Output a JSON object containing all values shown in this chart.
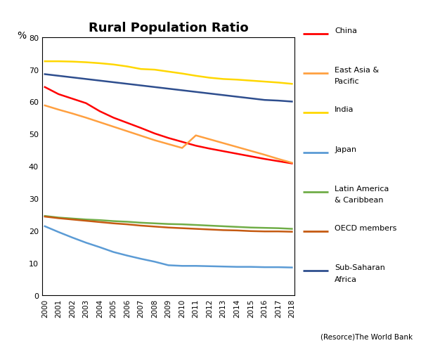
{
  "title": "Rural Population Ratio",
  "ylabel": "%",
  "source": "(Resorce)The World Bank",
  "years": [
    2000,
    2001,
    2002,
    2003,
    2004,
    2005,
    2006,
    2007,
    2008,
    2009,
    2010,
    2011,
    2012,
    2013,
    2014,
    2015,
    2016,
    2017,
    2018
  ],
  "series": [
    {
      "name": "China",
      "label": "China",
      "color": "#FF0000",
      "data": [
        64.5,
        62.3,
        60.9,
        59.5,
        57.0,
        55.0,
        53.4,
        51.8,
        50.1,
        48.7,
        47.5,
        46.3,
        45.4,
        44.6,
        43.8,
        43.0,
        42.2,
        41.5,
        40.8
      ]
    },
    {
      "name": "East Asia & Pacific",
      "label": "East Asia &\nPacific",
      "color": "#FFA040",
      "data": [
        58.8,
        57.5,
        56.3,
        55.0,
        53.6,
        52.2,
        50.8,
        49.4,
        48.0,
        46.8,
        45.6,
        49.5,
        48.3,
        47.1,
        45.9,
        44.7,
        43.5,
        42.2,
        41.0
      ]
    },
    {
      "name": "India",
      "label": "India",
      "color": "#FFD700",
      "data": [
        72.5,
        72.5,
        72.4,
        72.2,
        71.9,
        71.5,
        70.9,
        70.1,
        69.9,
        69.3,
        68.7,
        68.0,
        67.4,
        67.0,
        66.8,
        66.5,
        66.2,
        65.9,
        65.5
      ]
    },
    {
      "name": "Japan",
      "label": "Japan",
      "color": "#5B9BD5",
      "data": [
        21.3,
        19.5,
        17.8,
        16.2,
        14.8,
        13.3,
        12.2,
        11.2,
        10.3,
        9.2,
        9.0,
        9.0,
        8.9,
        8.8,
        8.7,
        8.7,
        8.6,
        8.6,
        8.5
      ]
    },
    {
      "name": "Latin America & Caribbean",
      "label": "Latin America\n& Caribbean",
      "color": "#70AD47",
      "data": [
        24.5,
        24.0,
        23.7,
        23.4,
        23.2,
        22.9,
        22.7,
        22.4,
        22.2,
        22.0,
        21.9,
        21.7,
        21.5,
        21.3,
        21.1,
        20.9,
        20.8,
        20.7,
        20.5
      ]
    },
    {
      "name": "OECD members",
      "label": "OECD members",
      "color": "#C55A11",
      "data": [
        24.3,
        23.8,
        23.4,
        23.0,
        22.6,
        22.2,
        21.9,
        21.5,
        21.2,
        20.9,
        20.7,
        20.5,
        20.3,
        20.1,
        20.0,
        19.8,
        19.7,
        19.7,
        19.6
      ]
    },
    {
      "name": "Sub-Saharan Africa",
      "label": "Sub-Saharan\nAfrica",
      "color": "#2E4E8E",
      "data": [
        68.5,
        68.0,
        67.5,
        67.0,
        66.5,
        66.0,
        65.5,
        65.0,
        64.5,
        64.0,
        63.5,
        63.0,
        62.5,
        62.0,
        61.5,
        61.0,
        60.5,
        60.3,
        60.0
      ]
    }
  ],
  "ylim": [
    0,
    80
  ],
  "yticks": [
    0,
    10,
    20,
    30,
    40,
    50,
    60,
    70,
    80
  ],
  "background_color": "#FFFFFF"
}
